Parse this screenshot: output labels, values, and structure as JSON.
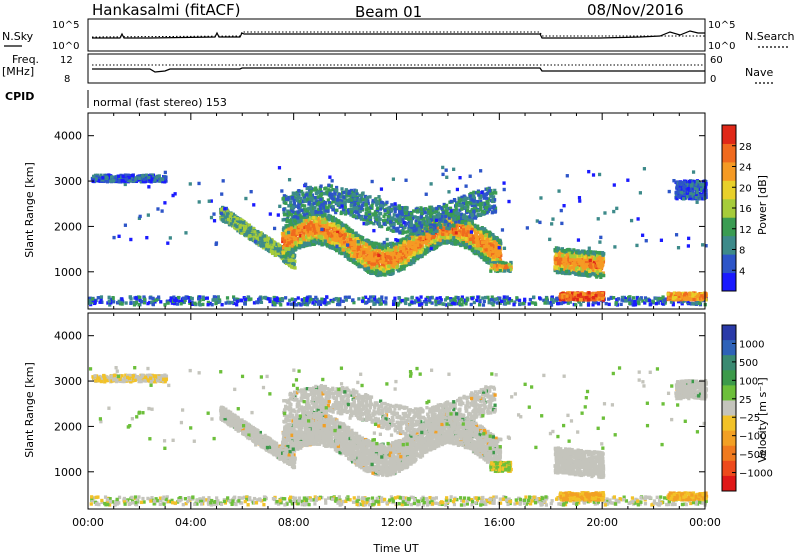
{
  "header": {
    "station": "Hankasalmi (fitACF)",
    "beam": "Beam 01",
    "date": "08/Nov/2016"
  },
  "top_panels": {
    "nsky_label": "N.Sky",
    "nsky_ticks": [
      "10^5",
      "10^0"
    ],
    "nsearch_label": "N.Search",
    "nsearch_ticks": [
      "10^5",
      "10^0"
    ],
    "freq_label_1": "Freq.",
    "freq_label_2": "[MHz]",
    "freq_ticks": [
      "12",
      "8"
    ],
    "nave_label": "Nave",
    "nave_ticks": [
      "60",
      "0"
    ],
    "cpid_label": "CPID",
    "cpid_text": "normal (fast stereo) 153"
  },
  "chart_data": [
    {
      "type": "heatmap",
      "name": "power",
      "xlabel": "",
      "ylabel": "Slant Range [km]",
      "xlim": [
        0,
        24
      ],
      "ylim": [
        180,
        4500
      ],
      "yticks": [
        1000,
        2000,
        3000,
        4000
      ],
      "colorbar": {
        "label": "Power [dB]",
        "ticks": [
          "4",
          "8",
          "12",
          "16",
          "20",
          "24",
          "28"
        ],
        "colors": [
          "#1a1aff",
          "#2d55c8",
          "#3d8a8a",
          "#3a9c52",
          "#a6cc3a",
          "#e8d02a",
          "#f59a24",
          "#f06a1e",
          "#e02818"
        ]
      }
    },
    {
      "type": "heatmap",
      "name": "velocity",
      "xlabel": "Time UT",
      "ylabel": "Slant Range [km]",
      "xlim": [
        0,
        24
      ],
      "ylim": [
        180,
        4500
      ],
      "xticks": [
        "00:00",
        "04:00",
        "08:00",
        "12:00",
        "16:00",
        "20:00",
        "00:00"
      ],
      "yticks": [
        1000,
        2000,
        3000,
        4000
      ],
      "colorbar": {
        "label": "Velocity [m s⁻¹]",
        "ticks": [
          "1000",
          "500",
          "100",
          "25",
          "−25",
          "−100",
          "−500",
          "−1000"
        ],
        "colors": [
          "#2a3aa8",
          "#2e62b8",
          "#3a8a72",
          "#3c9a4a",
          "#6cbf3a",
          "#c4c4bc",
          "#f2c228",
          "#f2a024",
          "#f07a1e",
          "#ee4a1c",
          "#e01818"
        ]
      }
    }
  ]
}
